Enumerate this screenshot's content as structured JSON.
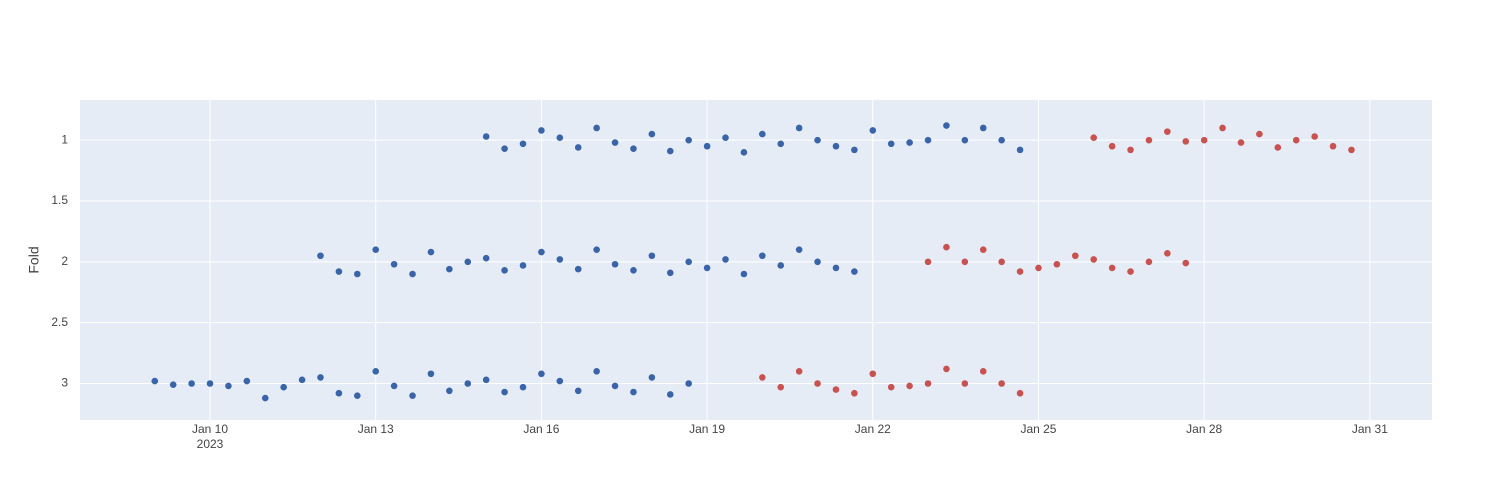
{
  "chart_data": {
    "type": "scatter",
    "y_label": "Fold",
    "xlim": [
      "2023-01-07 15:30",
      "2023-02-01 03:00"
    ],
    "ylim": [
      0.67,
      3.3
    ],
    "y_reversed": true,
    "grid": true,
    "xticks": [
      {
        "value": "2023-01-10 00:00",
        "label": "Jan 10"
      },
      {
        "value": "2023-01-13 00:00",
        "label": "Jan 13"
      },
      {
        "value": "2023-01-16 00:00",
        "label": "Jan 16"
      },
      {
        "value": "2023-01-19 00:00",
        "label": "Jan 19"
      },
      {
        "value": "2023-01-22 00:00",
        "label": "Jan 22"
      },
      {
        "value": "2023-01-25 00:00",
        "label": "Jan 25"
      },
      {
        "value": "2023-01-28 00:00",
        "label": "Jan 28"
      },
      {
        "value": "2023-01-31 00:00",
        "label": "Jan 31"
      }
    ],
    "x_year_label": "2023",
    "yticks": [
      1,
      1.5,
      2,
      2.5,
      3
    ],
    "series": [
      {
        "color": "#3a64a8",
        "x": [
          "2023-01-09 00:00",
          "2023-01-09 08:00",
          "2023-01-09 16:00",
          "2023-01-10 00:00",
          "2023-01-10 08:00",
          "2023-01-10 16:00",
          "2023-01-11 00:00",
          "2023-01-11 08:00",
          "2023-01-11 16:00",
          "2023-01-12 00:00",
          "2023-01-12 08:00",
          "2023-01-12 16:00",
          "2023-01-13 00:00",
          "2023-01-13 08:00",
          "2023-01-13 16:00",
          "2023-01-14 00:00",
          "2023-01-14 08:00",
          "2023-01-14 16:00",
          "2023-01-15 00:00",
          "2023-01-15 08:00",
          "2023-01-15 16:00",
          "2023-01-16 00:00",
          "2023-01-16 08:00",
          "2023-01-16 16:00",
          "2023-01-17 00:00",
          "2023-01-17 08:00",
          "2023-01-17 16:00",
          "2023-01-18 00:00",
          "2023-01-18 08:00",
          "2023-01-18 16:00"
        ],
        "values": [
          2.98,
          3.01,
          3.0,
          3.0,
          3.02,
          2.98,
          3.12,
          3.03,
          2.97,
          2.95,
          3.08,
          3.1,
          2.9,
          3.02,
          3.1,
          2.92,
          3.06,
          3.0,
          2.97,
          3.07,
          3.03,
          2.92,
          2.98,
          3.06,
          2.9,
          3.02,
          3.07,
          2.95,
          3.09,
          3.0
        ]
      },
      {
        "color": "#c85250",
        "x": [
          "2023-01-20 00:00",
          "2023-01-20 08:00",
          "2023-01-20 16:00",
          "2023-01-21 00:00",
          "2023-01-21 08:00",
          "2023-01-21 16:00",
          "2023-01-22 00:00",
          "2023-01-22 08:00",
          "2023-01-22 16:00",
          "2023-01-23 00:00",
          "2023-01-23 08:00",
          "2023-01-23 16:00",
          "2023-01-24 00:00",
          "2023-01-24 08:00",
          "2023-01-24 16:00"
        ],
        "values": [
          2.95,
          3.03,
          2.9,
          3.0,
          3.05,
          3.08,
          2.92,
          3.03,
          3.02,
          3.0,
          2.88,
          3.0,
          2.9,
          3.0,
          3.08
        ]
      },
      {
        "color": "#3a64a8",
        "x": [
          "2023-01-12 00:00",
          "2023-01-12 08:00",
          "2023-01-12 16:00",
          "2023-01-13 00:00",
          "2023-01-13 08:00",
          "2023-01-13 16:00",
          "2023-01-14 00:00",
          "2023-01-14 08:00",
          "2023-01-14 16:00",
          "2023-01-15 00:00",
          "2023-01-15 08:00",
          "2023-01-15 16:00",
          "2023-01-16 00:00",
          "2023-01-16 08:00",
          "2023-01-16 16:00",
          "2023-01-17 00:00",
          "2023-01-17 08:00",
          "2023-01-17 16:00",
          "2023-01-18 00:00",
          "2023-01-18 08:00",
          "2023-01-18 16:00",
          "2023-01-19 00:00",
          "2023-01-19 08:00",
          "2023-01-19 16:00",
          "2023-01-20 00:00",
          "2023-01-20 08:00",
          "2023-01-20 16:00",
          "2023-01-21 00:00",
          "2023-01-21 08:00",
          "2023-01-21 16:00"
        ],
        "values": [
          1.95,
          2.08,
          2.1,
          1.9,
          2.02,
          2.1,
          1.92,
          2.06,
          2.0,
          1.97,
          2.07,
          2.03,
          1.92,
          1.98,
          2.06,
          1.9,
          2.02,
          2.07,
          1.95,
          2.09,
          2.0,
          2.05,
          1.98,
          2.1,
          1.95,
          2.03,
          1.9,
          2.0,
          2.05,
          2.08
        ]
      },
      {
        "color": "#c85250",
        "x": [
          "2023-01-23 00:00",
          "2023-01-23 08:00",
          "2023-01-23 16:00",
          "2023-01-24 00:00",
          "2023-01-24 08:00",
          "2023-01-24 16:00",
          "2023-01-25 00:00",
          "2023-01-25 08:00",
          "2023-01-25 16:00",
          "2023-01-26 00:00",
          "2023-01-26 08:00",
          "2023-01-26 16:00",
          "2023-01-27 00:00",
          "2023-01-27 08:00",
          "2023-01-27 16:00"
        ],
        "values": [
          2.0,
          1.88,
          2.0,
          1.9,
          2.0,
          2.08,
          2.05,
          2.02,
          1.95,
          1.98,
          2.05,
          2.08,
          2.0,
          1.93,
          2.01
        ]
      },
      {
        "color": "#3a64a8",
        "x": [
          "2023-01-15 00:00",
          "2023-01-15 08:00",
          "2023-01-15 16:00",
          "2023-01-16 00:00",
          "2023-01-16 08:00",
          "2023-01-16 16:00",
          "2023-01-17 00:00",
          "2023-01-17 08:00",
          "2023-01-17 16:00",
          "2023-01-18 00:00",
          "2023-01-18 08:00",
          "2023-01-18 16:00",
          "2023-01-19 00:00",
          "2023-01-19 08:00",
          "2023-01-19 16:00",
          "2023-01-20 00:00",
          "2023-01-20 08:00",
          "2023-01-20 16:00",
          "2023-01-21 00:00",
          "2023-01-21 08:00",
          "2023-01-21 16:00",
          "2023-01-22 00:00",
          "2023-01-22 08:00",
          "2023-01-22 16:00",
          "2023-01-23 00:00",
          "2023-01-23 08:00",
          "2023-01-23 16:00",
          "2023-01-24 00:00",
          "2023-01-24 08:00",
          "2023-01-24 16:00"
        ],
        "values": [
          0.97,
          1.07,
          1.03,
          0.92,
          0.98,
          1.06,
          0.9,
          1.02,
          1.07,
          0.95,
          1.09,
          1.0,
          1.05,
          0.98,
          1.1,
          0.95,
          1.03,
          0.9,
          1.0,
          1.05,
          1.08,
          0.92,
          1.03,
          1.02,
          1.0,
          0.88,
          1.0,
          0.9,
          1.0,
          1.08
        ]
      },
      {
        "color": "#c85250",
        "x": [
          "2023-01-26 00:00",
          "2023-01-26 08:00",
          "2023-01-26 16:00",
          "2023-01-27 00:00",
          "2023-01-27 08:00",
          "2023-01-27 16:00",
          "2023-01-28 00:00",
          "2023-01-28 08:00",
          "2023-01-28 16:00",
          "2023-01-29 00:00",
          "2023-01-29 08:00",
          "2023-01-29 16:00",
          "2023-01-30 00:00",
          "2023-01-30 08:00",
          "2023-01-30 16:00"
        ],
        "values": [
          0.98,
          1.05,
          1.08,
          1.0,
          0.93,
          1.01,
          1.0,
          0.9,
          1.02,
          0.95,
          1.06,
          1.0,
          0.97,
          1.05,
          1.08
        ]
      }
    ]
  }
}
